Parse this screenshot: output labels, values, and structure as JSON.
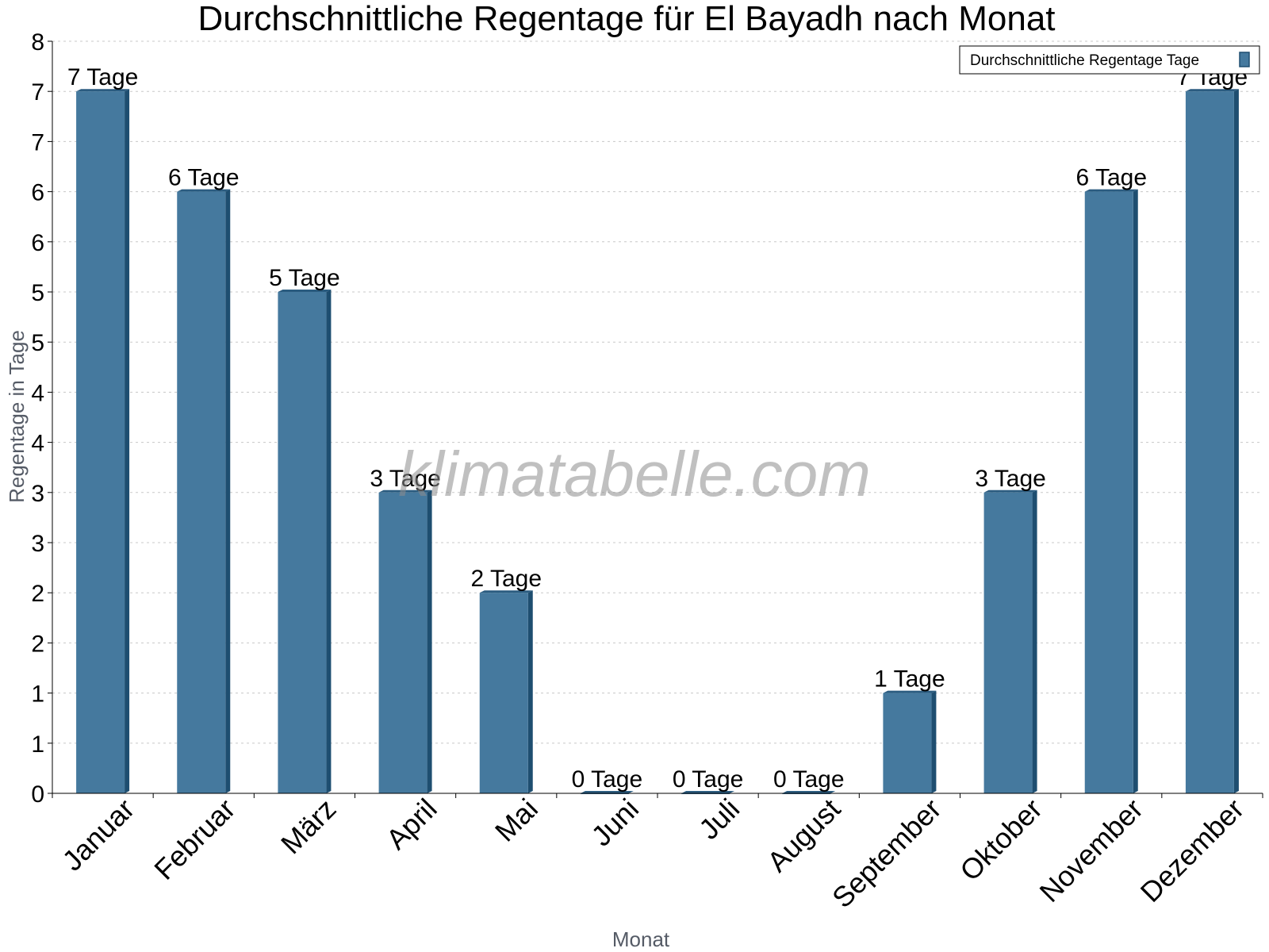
{
  "chart_data": {
    "type": "bar",
    "title": "Durchschnittliche Regentage für El Bayadh nach Monat",
    "xlabel": "Monat",
    "ylabel": "Regentage in Tage",
    "categories": [
      "Januar",
      "Februar",
      "März",
      "April",
      "Mai",
      "Juni",
      "Juli",
      "August",
      "September",
      "Oktober",
      "November",
      "Dezember"
    ],
    "series": [
      {
        "name": "Durchschnittliche Regentage Tage",
        "values": [
          7,
          6,
          5,
          3,
          2,
          0,
          0,
          0,
          1,
          3,
          6,
          7
        ],
        "data_labels": [
          "7 Tage",
          "6 Tage",
          "5 Tage",
          "3 Tage",
          "2 Tage",
          "0 Tage",
          "0 Tage",
          "0 Tage",
          "1 Tage",
          "3 Tage",
          "6 Tage",
          "7 Tage"
        ]
      }
    ],
    "ylim": [
      0,
      7.5
    ],
    "y_ticks": [
      0,
      0.5,
      1,
      1.5,
      2,
      2.5,
      3,
      3.5,
      4,
      4.5,
      5,
      5.5,
      6,
      6.5,
      7,
      7.5
    ],
    "y_tick_labels": [
      "0",
      "1",
      "1",
      "2",
      "2",
      "3",
      "3",
      "4",
      "4",
      "5",
      "5",
      "6",
      "6",
      "7",
      "7",
      "8"
    ],
    "grid": true,
    "legend_position": "top-right",
    "colors": {
      "bar": "#45799e",
      "bar_side": "#1e4e70",
      "bar_top": "#2b5c80",
      "grid": "#c8c8c8"
    }
  },
  "watermark": "klimatabelle.com"
}
